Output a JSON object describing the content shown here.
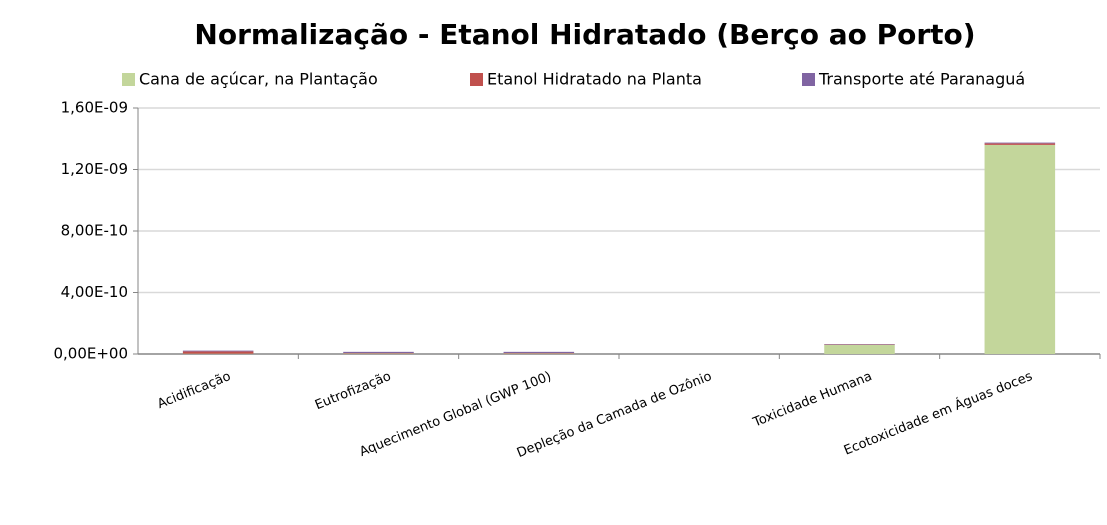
{
  "chart_data": {
    "type": "stacked_bar",
    "title": "Normalização - Etanol Hidratado (Berço ao Porto)",
    "categories": [
      "Acidificação",
      "Eutrofização",
      "Aquecimento Global (GWP 100)",
      "Depleção da Camada de Ozônio",
      "Toxicidade Humana",
      "Ecotoxicidade em Águas doces"
    ],
    "series": [
      {
        "name": "Cana de açúcar, na Plantação",
        "color": "#c3d69b",
        "values": [
          2e-12,
          3e-12,
          3e-12,
          0,
          6e-11,
          1.36e-09
        ]
      },
      {
        "name": "Etanol Hidratado na Planta",
        "color": "#c0504d",
        "values": [
          1.5e-11,
          3e-12,
          3e-12,
          0,
          2e-12,
          1e-11
        ]
      },
      {
        "name": "Transporte até Paranaguá",
        "color": "#8064a2",
        "values": [
          5e-12,
          8e-12,
          8e-12,
          0,
          3e-12,
          5e-12
        ]
      }
    ],
    "ylim": [
      0,
      1.6e-09
    ],
    "yticks": [
      {
        "value": 0,
        "label": "0,00E+00"
      },
      {
        "value": 4e-10,
        "label": "4,00E-10"
      },
      {
        "value": 8e-10,
        "label": "8,00E-10"
      },
      {
        "value": 1.2e-09,
        "label": "1,20E-09"
      },
      {
        "value": 1.6e-09,
        "label": "1,60E-09"
      }
    ],
    "grid": true,
    "legend": "top"
  }
}
